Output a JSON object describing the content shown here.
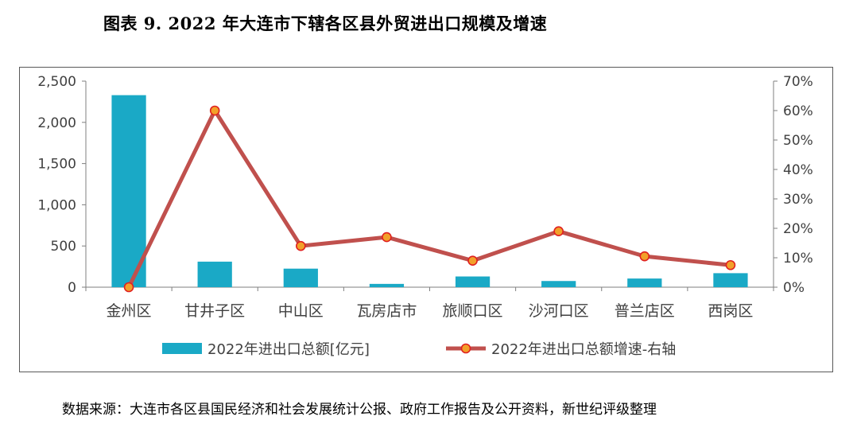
{
  "header": {
    "title": "图表 9.   2022 年大连市下辖各区县外贸进出口规模及增速"
  },
  "footer": {
    "source": "数据来源：大连市各区县国民经济和社会发展统计公报、政府工作报告及公开资料，新世纪评级整理"
  },
  "colors": {
    "bar": "#1aa9c6",
    "line": "#c0504d",
    "marker_fill": "#f2a02a",
    "marker_edge": "#e02020"
  },
  "chart_data": {
    "type": "bar+line",
    "categories": [
      "金州区",
      "甘井子区",
      "中山区",
      "瓦房店市",
      "旅顺口区",
      "沙河口区",
      "普兰店区",
      "西岗区"
    ],
    "series": [
      {
        "name": "2022年进出口总额[亿元]",
        "type": "bar",
        "axis": "left",
        "values": [
          2330,
          310,
          225,
          40,
          130,
          75,
          105,
          170
        ]
      },
      {
        "name": "2022年进出口总额增速-右轴",
        "type": "line",
        "axis": "right",
        "values": [
          0,
          60,
          14,
          17,
          9,
          19,
          10.5,
          7.5
        ]
      }
    ],
    "y_left": {
      "min": 0,
      "max": 2500,
      "step": 500,
      "tick_labels": [
        "0",
        "500",
        "1,000",
        "1,500",
        "2,000",
        "2,500"
      ]
    },
    "y_right": {
      "min": 0,
      "max": 70,
      "step": 10,
      "tick_labels": [
        "0%",
        "10%",
        "20%",
        "30%",
        "40%",
        "50%",
        "60%",
        "70%"
      ]
    },
    "legend_position": "bottom",
    "grid": false
  }
}
